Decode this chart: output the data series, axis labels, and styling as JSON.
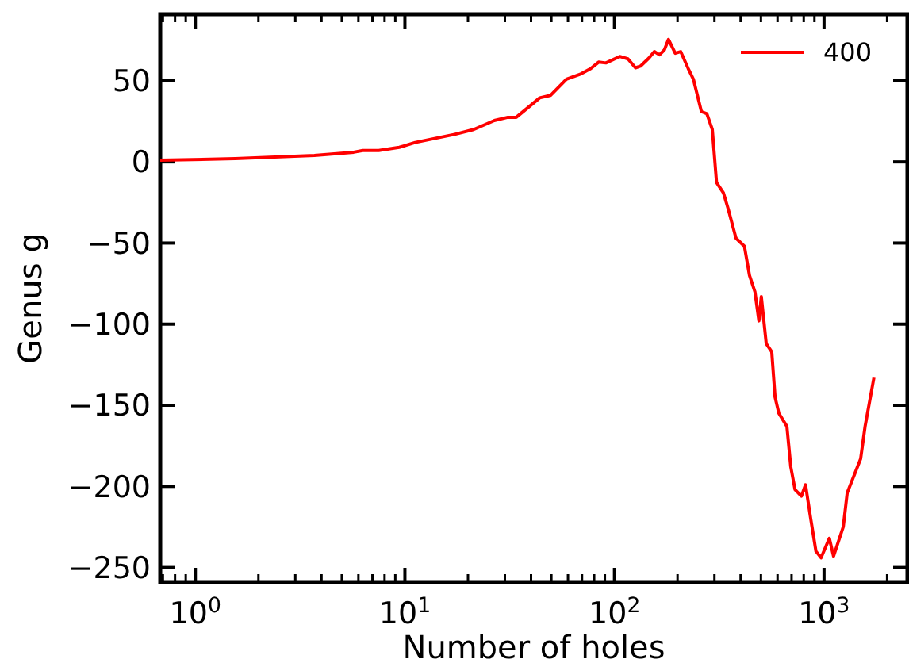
{
  "chart_data": {
    "type": "line",
    "xlabel": "Number of holes",
    "ylabel": "Genus g",
    "log": "x",
    "legend": "top right",
    "grid": false,
    "xlim": [
      0.68,
      2500
    ],
    "ylim": [
      -259,
      91
    ],
    "xticks": [
      {
        "value": 0.7,
        "label": null
      },
      {
        "value": 0.8,
        "label": null
      },
      {
        "value": 0.9,
        "label": null
      },
      {
        "value": 1,
        "label": "10$^{0}$"
      },
      {
        "value": 2,
        "label": null
      },
      {
        "value": 3,
        "label": null
      },
      {
        "value": 4,
        "label": null
      },
      {
        "value": 5,
        "label": null
      },
      {
        "value": 6,
        "label": null
      },
      {
        "value": 7,
        "label": null
      },
      {
        "value": 8,
        "label": null
      },
      {
        "value": 9,
        "label": null
      },
      {
        "value": 10,
        "label": "10$^{1}$"
      },
      {
        "value": 20,
        "label": null
      },
      {
        "value": 30,
        "label": null
      },
      {
        "value": 40,
        "label": null
      },
      {
        "value": 50,
        "label": null
      },
      {
        "value": 60,
        "label": null
      },
      {
        "value": 70,
        "label": null
      },
      {
        "value": 80,
        "label": null
      },
      {
        "value": 90,
        "label": null
      },
      {
        "value": 100,
        "label": "10$^{2}$"
      },
      {
        "value": 200,
        "label": null
      },
      {
        "value": 300,
        "label": null
      },
      {
        "value": 400,
        "label": null
      },
      {
        "value": 500,
        "label": null
      },
      {
        "value": 600,
        "label": null
      },
      {
        "value": 700,
        "label": null
      },
      {
        "value": 800,
        "label": null
      },
      {
        "value": 900,
        "label": null
      },
      {
        "value": 1000,
        "label": "10$^{3}$"
      },
      {
        "value": 2000,
        "label": null
      }
    ],
    "yticks": [
      -250,
      -200,
      -150,
      -100,
      -50,
      0,
      50
    ],
    "series": [
      {
        "name": "400",
        "color": "#ff0000",
        "x": [
          0.68,
          1.55,
          3.7,
          5.7,
          6.3,
          7.5,
          9.4,
          11.2,
          17.3,
          21.3,
          26.7,
          31,
          34,
          44,
          49.5,
          59,
          68.5,
          77,
          84,
          91,
          106,
          116,
          126,
          133,
          146,
          155,
          164,
          173,
          181,
          195,
          207,
          225,
          238,
          260,
          276,
          293,
          307,
          331,
          349,
          380,
          417,
          441,
          468,
          489,
          502,
          530,
          563,
          584,
          609,
          665,
          694,
          727,
          780,
          816,
          864,
          915,
          968,
          1060,
          1110,
          1235,
          1290,
          1495,
          1570,
          1730
        ],
        "values": [
          1,
          2,
          4,
          6,
          7,
          7,
          9,
          12,
          17,
          20,
          25.5,
          27.5,
          27.5,
          39.5,
          41,
          51,
          54,
          57.5,
          61.5,
          61,
          65,
          63.5,
          58,
          59,
          64,
          68,
          66,
          69,
          75.5,
          67,
          68,
          57.5,
          51,
          31,
          29.7,
          20,
          -12.7,
          -19,
          -29,
          -47,
          -52,
          -70,
          -80,
          -98,
          -83,
          -112,
          -117,
          -145,
          -155,
          -163,
          -188,
          -202,
          -206,
          -199,
          -220,
          -240,
          -244,
          -232,
          -243,
          -225,
          -204,
          -183,
          -163,
          -133
        ]
      }
    ]
  }
}
